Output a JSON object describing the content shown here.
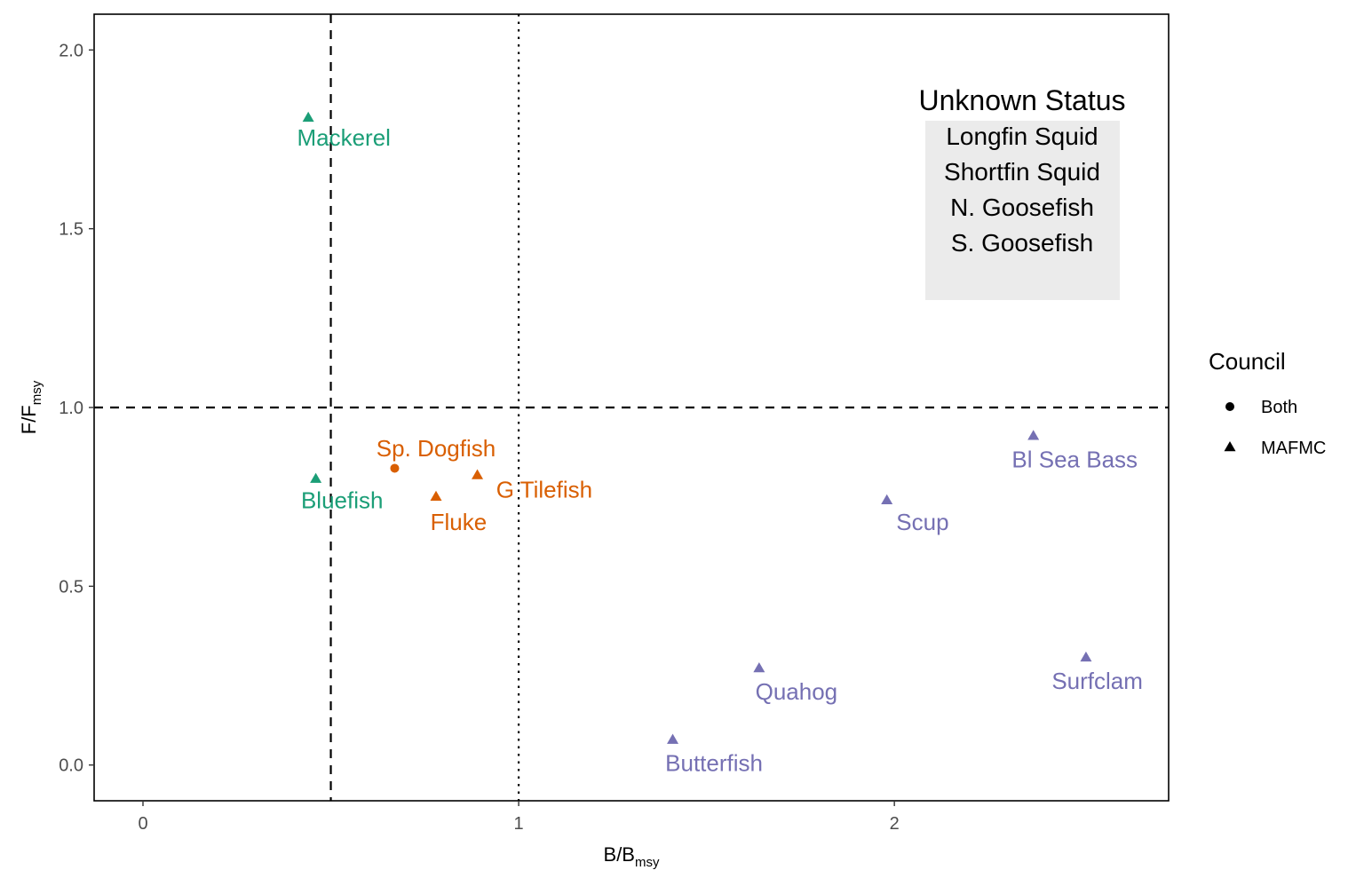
{
  "chart_data": {
    "type": "scatter",
    "xlabel": {
      "base": "B/B",
      "sub": "msy"
    },
    "ylabel": {
      "base": "F/F",
      "sub": "msy"
    },
    "xlim": [
      -0.13,
      2.73
    ],
    "ylim": [
      -0.1,
      2.1
    ],
    "x_ticks": [
      0,
      1,
      2
    ],
    "y_ticks": [
      0.0,
      0.5,
      1.0,
      1.5,
      2.0
    ],
    "x_tick_labels": [
      "0",
      "1",
      "2"
    ],
    "y_tick_labels": [
      "0.0",
      "0.5",
      "1.0",
      "1.5",
      "2.0"
    ],
    "grid": false,
    "reference_lines": [
      {
        "axis": "x",
        "value": 0.5,
        "style": "dashed"
      },
      {
        "axis": "x",
        "value": 1.0,
        "style": "dotted"
      },
      {
        "axis": "y",
        "value": 1.0,
        "style": "dashed"
      }
    ],
    "colors": {
      "green": "#1b9e77",
      "orange": "#d95f02",
      "purple": "#7570b3"
    },
    "points": [
      {
        "label": "Mackerel",
        "x": 0.44,
        "y": 1.81,
        "council": "MAFMC",
        "color": "#1b9e77",
        "anchor": "start",
        "dx": -0.03,
        "dy": -0.06
      },
      {
        "label": "Bluefish",
        "x": 0.46,
        "y": 0.8,
        "council": "MAFMC",
        "color": "#1b9e77",
        "anchor": "middle",
        "dx": 0.07,
        "dy": -0.065
      },
      {
        "label": "Sp. Dogfish",
        "x": 0.67,
        "y": 0.83,
        "council": "Both",
        "color": "#d95f02",
        "anchor": "middle",
        "dx": 0.11,
        "dy": 0.05
      },
      {
        "label": "G Tilefish",
        "x": 0.89,
        "y": 0.81,
        "council": "MAFMC",
        "color": "#d95f02",
        "anchor": "start",
        "dx": 0.05,
        "dy": -0.045
      },
      {
        "label": "Fluke",
        "x": 0.78,
        "y": 0.75,
        "council": "MAFMC",
        "color": "#d95f02",
        "anchor": "middle",
        "dx": 0.06,
        "dy": -0.075
      },
      {
        "label": "Scup",
        "x": 1.98,
        "y": 0.74,
        "council": "MAFMC",
        "color": "#7570b3",
        "anchor": "start",
        "dx": 0.025,
        "dy": -0.065
      },
      {
        "label": "Bl Sea Bass",
        "x": 2.37,
        "y": 0.92,
        "council": "MAFMC",
        "color": "#7570b3",
        "anchor": "middle",
        "dx": 0.11,
        "dy": -0.07
      },
      {
        "label": "Quahog",
        "x": 1.64,
        "y": 0.27,
        "council": "MAFMC",
        "color": "#7570b3",
        "anchor": "start",
        "dx": -0.01,
        "dy": -0.07
      },
      {
        "label": "Surfclam",
        "x": 2.51,
        "y": 0.3,
        "council": "MAFMC",
        "color": "#7570b3",
        "anchor": "middle",
        "dx": 0.03,
        "dy": -0.07
      },
      {
        "label": "Butterfish",
        "x": 1.41,
        "y": 0.07,
        "council": "MAFMC",
        "color": "#7570b3",
        "anchor": "middle",
        "dx": 0.11,
        "dy": -0.07
      }
    ],
    "legend": {
      "title": "Council",
      "placement": "right",
      "entries": [
        {
          "label": "Both",
          "shape": "circle"
        },
        {
          "label": "MAFMC",
          "shape": "triangle"
        }
      ]
    },
    "annotation_box": {
      "title": "Unknown Status",
      "items": [
        "Longfin Squid",
        "Shortfin Squid",
        "N. Goosefish",
        "S. Goosefish"
      ],
      "fill": "#ebebeb"
    }
  }
}
